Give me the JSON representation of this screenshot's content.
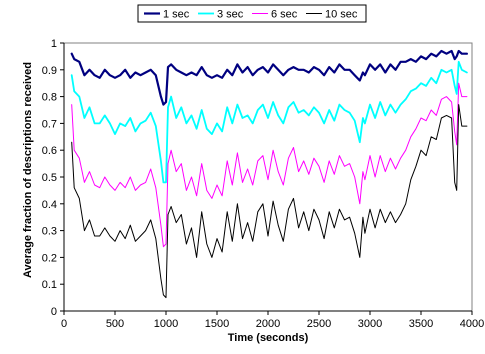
{
  "chart_data": {
    "type": "line",
    "title": "",
    "xlabel": "Time (seconds)",
    "ylabel": "Average fraction of descriptions received",
    "xlim": [
      0,
      4000
    ],
    "ylim": [
      0,
      1
    ],
    "xticks": [
      0,
      500,
      1000,
      1500,
      2000,
      2500,
      3000,
      3500,
      4000
    ],
    "yticks": [
      0,
      0.1,
      0.2,
      0.3,
      0.4,
      0.5,
      0.6,
      0.7,
      0.8,
      0.9,
      1
    ],
    "grid": false,
    "legend_position": "top",
    "series": [
      {
        "name": "1 sec",
        "color": "#000080",
        "x": [
          75,
          100,
          150,
          200,
          250,
          300,
          350,
          400,
          450,
          500,
          550,
          600,
          650,
          700,
          750,
          800,
          850,
          900,
          950,
          975,
          1000,
          1020,
          1050,
          1100,
          1150,
          1200,
          1250,
          1300,
          1350,
          1400,
          1450,
          1500,
          1550,
          1600,
          1650,
          1700,
          1750,
          1800,
          1850,
          1900,
          1950,
          2000,
          2050,
          2100,
          2150,
          2200,
          2250,
          2300,
          2350,
          2400,
          2450,
          2500,
          2550,
          2600,
          2650,
          2700,
          2750,
          2800,
          2850,
          2900,
          2930,
          2950,
          3000,
          3050,
          3100,
          3150,
          3200,
          3250,
          3300,
          3350,
          3400,
          3450,
          3500,
          3550,
          3600,
          3650,
          3700,
          3750,
          3800,
          3830,
          3850,
          3870,
          3900,
          3950
        ],
        "y": [
          0.96,
          0.94,
          0.93,
          0.88,
          0.9,
          0.88,
          0.87,
          0.9,
          0.88,
          0.87,
          0.88,
          0.9,
          0.87,
          0.89,
          0.88,
          0.89,
          0.9,
          0.88,
          0.8,
          0.77,
          0.78,
          0.91,
          0.92,
          0.9,
          0.89,
          0.88,
          0.89,
          0.88,
          0.91,
          0.88,
          0.87,
          0.88,
          0.87,
          0.9,
          0.88,
          0.92,
          0.89,
          0.91,
          0.88,
          0.9,
          0.91,
          0.89,
          0.92,
          0.9,
          0.88,
          0.9,
          0.91,
          0.9,
          0.9,
          0.89,
          0.91,
          0.9,
          0.88,
          0.91,
          0.89,
          0.92,
          0.9,
          0.9,
          0.88,
          0.86,
          0.89,
          0.88,
          0.92,
          0.9,
          0.92,
          0.89,
          0.92,
          0.9,
          0.93,
          0.93,
          0.94,
          0.93,
          0.95,
          0.94,
          0.96,
          0.95,
          0.97,
          0.96,
          0.97,
          0.94,
          0.95,
          0.97,
          0.96,
          0.96
        ]
      },
      {
        "name": "3 sec",
        "color": "#00FFFF",
        "x": [
          75,
          100,
          150,
          200,
          250,
          300,
          350,
          400,
          450,
          500,
          550,
          600,
          650,
          700,
          750,
          800,
          850,
          900,
          950,
          975,
          1000,
          1020,
          1050,
          1100,
          1150,
          1200,
          1250,
          1300,
          1350,
          1400,
          1450,
          1500,
          1550,
          1600,
          1650,
          1700,
          1750,
          1800,
          1850,
          1900,
          1950,
          2000,
          2050,
          2100,
          2150,
          2200,
          2250,
          2300,
          2350,
          2400,
          2450,
          2500,
          2550,
          2600,
          2650,
          2700,
          2750,
          2800,
          2850,
          2900,
          2930,
          2950,
          3000,
          3050,
          3100,
          3150,
          3200,
          3250,
          3300,
          3350,
          3400,
          3450,
          3500,
          3550,
          3600,
          3650,
          3700,
          3750,
          3800,
          3830,
          3850,
          3870,
          3900,
          3950
        ],
        "y": [
          0.88,
          0.82,
          0.8,
          0.72,
          0.76,
          0.7,
          0.7,
          0.73,
          0.7,
          0.66,
          0.7,
          0.69,
          0.72,
          0.67,
          0.7,
          0.71,
          0.74,
          0.69,
          0.56,
          0.48,
          0.48,
          0.76,
          0.8,
          0.72,
          0.76,
          0.7,
          0.73,
          0.68,
          0.75,
          0.68,
          0.66,
          0.7,
          0.67,
          0.76,
          0.7,
          0.77,
          0.72,
          0.73,
          0.7,
          0.75,
          0.77,
          0.72,
          0.78,
          0.73,
          0.7,
          0.76,
          0.78,
          0.74,
          0.75,
          0.73,
          0.76,
          0.74,
          0.7,
          0.75,
          0.71,
          0.77,
          0.75,
          0.74,
          0.71,
          0.63,
          0.72,
          0.7,
          0.77,
          0.72,
          0.78,
          0.73,
          0.77,
          0.74,
          0.77,
          0.79,
          0.82,
          0.83,
          0.85,
          0.84,
          0.87,
          0.85,
          0.9,
          0.89,
          0.9,
          0.84,
          0.81,
          0.93,
          0.9,
          0.89
        ]
      },
      {
        "name": "6 sec",
        "color": "#FF00FF",
        "x": [
          75,
          100,
          150,
          200,
          250,
          300,
          350,
          400,
          450,
          500,
          550,
          600,
          650,
          700,
          750,
          800,
          850,
          900,
          950,
          975,
          1000,
          1020,
          1050,
          1100,
          1150,
          1200,
          1250,
          1300,
          1350,
          1400,
          1450,
          1500,
          1550,
          1600,
          1650,
          1700,
          1750,
          1800,
          1850,
          1900,
          1950,
          2000,
          2050,
          2100,
          2150,
          2200,
          2250,
          2300,
          2350,
          2400,
          2450,
          2500,
          2550,
          2600,
          2650,
          2700,
          2750,
          2800,
          2850,
          2900,
          2930,
          2950,
          3000,
          3050,
          3100,
          3150,
          3200,
          3250,
          3300,
          3350,
          3400,
          3450,
          3500,
          3550,
          3600,
          3650,
          3700,
          3750,
          3800,
          3830,
          3850,
          3870,
          3900,
          3950
        ],
        "y": [
          0.77,
          0.6,
          0.57,
          0.48,
          0.52,
          0.47,
          0.46,
          0.5,
          0.47,
          0.45,
          0.48,
          0.46,
          0.5,
          0.45,
          0.47,
          0.48,
          0.53,
          0.46,
          0.32,
          0.24,
          0.25,
          0.55,
          0.6,
          0.52,
          0.55,
          0.45,
          0.5,
          0.43,
          0.55,
          0.45,
          0.42,
          0.47,
          0.43,
          0.56,
          0.47,
          0.59,
          0.48,
          0.53,
          0.47,
          0.56,
          0.58,
          0.49,
          0.6,
          0.52,
          0.47,
          0.57,
          0.61,
          0.52,
          0.56,
          0.51,
          0.57,
          0.54,
          0.48,
          0.56,
          0.51,
          0.58,
          0.54,
          0.55,
          0.5,
          0.4,
          0.52,
          0.49,
          0.58,
          0.5,
          0.58,
          0.52,
          0.57,
          0.53,
          0.57,
          0.6,
          0.65,
          0.68,
          0.72,
          0.71,
          0.75,
          0.73,
          0.79,
          0.8,
          0.78,
          0.67,
          0.62,
          0.85,
          0.8,
          0.8
        ]
      },
      {
        "name": "10 sec",
        "color": "#000000",
        "x": [
          75,
          100,
          150,
          200,
          250,
          300,
          350,
          400,
          450,
          500,
          550,
          600,
          650,
          700,
          750,
          800,
          850,
          900,
          950,
          975,
          1000,
          1020,
          1050,
          1100,
          1150,
          1200,
          1250,
          1300,
          1350,
          1400,
          1450,
          1500,
          1550,
          1600,
          1650,
          1700,
          1750,
          1800,
          1850,
          1900,
          1950,
          2000,
          2050,
          2100,
          2150,
          2200,
          2250,
          2300,
          2350,
          2400,
          2450,
          2500,
          2550,
          2600,
          2650,
          2700,
          2750,
          2800,
          2850,
          2900,
          2930,
          2950,
          3000,
          3050,
          3100,
          3150,
          3200,
          3250,
          3300,
          3350,
          3400,
          3450,
          3500,
          3550,
          3600,
          3650,
          3700,
          3750,
          3800,
          3830,
          3850,
          3870,
          3900,
          3950
        ],
        "y": [
          0.63,
          0.46,
          0.42,
          0.3,
          0.34,
          0.28,
          0.28,
          0.31,
          0.28,
          0.26,
          0.3,
          0.27,
          0.32,
          0.26,
          0.28,
          0.3,
          0.34,
          0.27,
          0.12,
          0.06,
          0.05,
          0.36,
          0.39,
          0.33,
          0.36,
          0.25,
          0.31,
          0.2,
          0.37,
          0.25,
          0.2,
          0.27,
          0.22,
          0.37,
          0.26,
          0.4,
          0.27,
          0.33,
          0.26,
          0.37,
          0.4,
          0.28,
          0.41,
          0.32,
          0.26,
          0.38,
          0.42,
          0.31,
          0.37,
          0.3,
          0.38,
          0.34,
          0.27,
          0.37,
          0.31,
          0.38,
          0.34,
          0.35,
          0.29,
          0.2,
          0.35,
          0.29,
          0.38,
          0.31,
          0.38,
          0.33,
          0.37,
          0.33,
          0.36,
          0.4,
          0.49,
          0.54,
          0.6,
          0.58,
          0.65,
          0.64,
          0.72,
          0.73,
          0.72,
          0.48,
          0.45,
          0.77,
          0.69,
          0.69
        ]
      }
    ]
  }
}
